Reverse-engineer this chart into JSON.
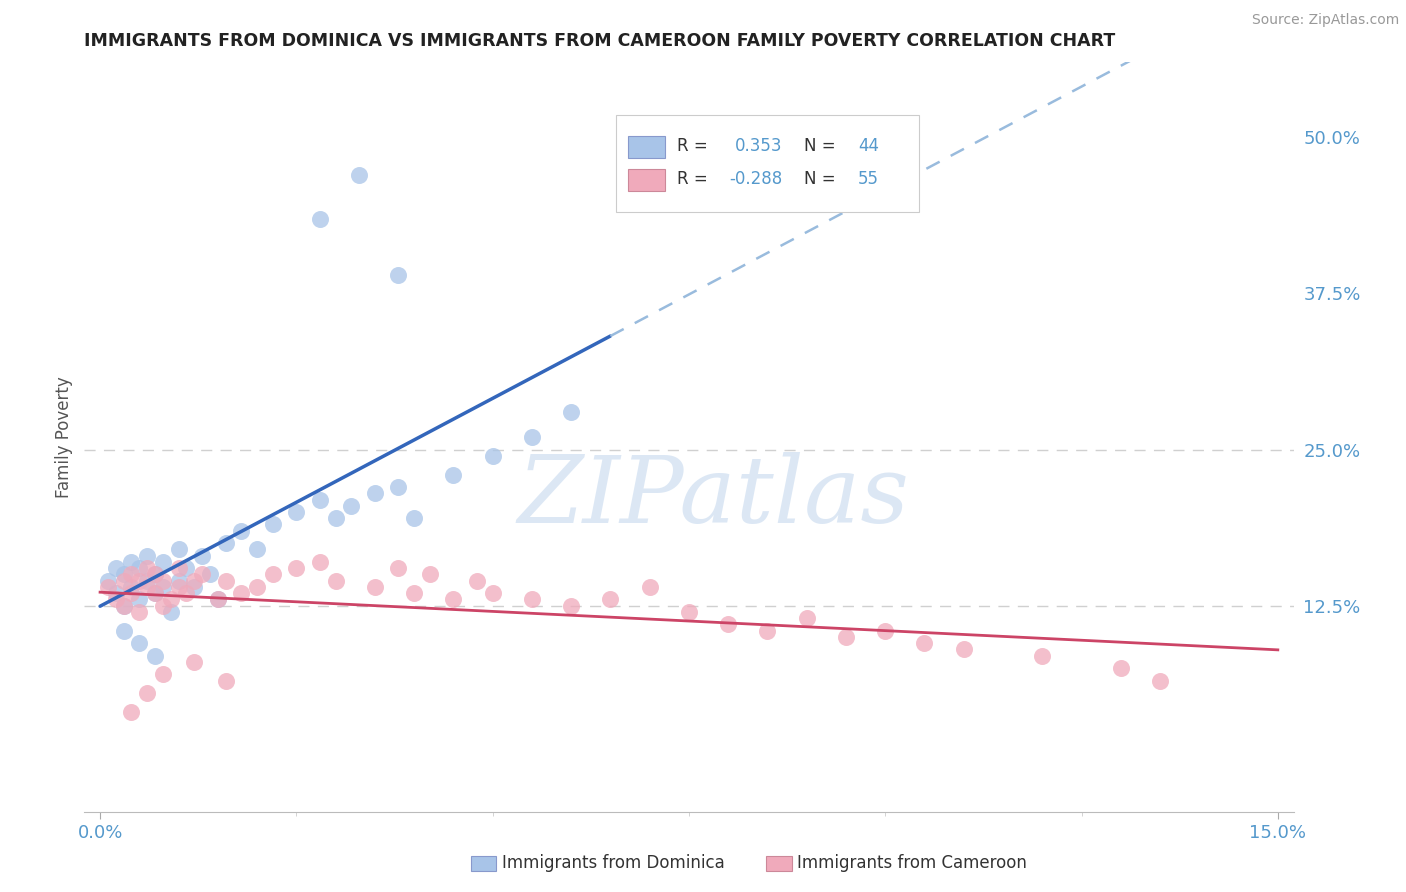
{
  "title": "IMMIGRANTS FROM DOMINICA VS IMMIGRANTS FROM CAMEROON FAMILY POVERTY CORRELATION CHART",
  "source": "Source: ZipAtlas.com",
  "xlabel_dominica": "Immigrants from Dominica",
  "xlabel_cameroon": "Immigrants from Cameroon",
  "ylabel": "Family Poverty",
  "xlim": [
    0.0,
    0.15
  ],
  "ylim": [
    0.0,
    0.55
  ],
  "ytick_right_vals": [
    0.125,
    0.25,
    0.375,
    0.5
  ],
  "ytick_right_labels": [
    "12.5%",
    "25.0%",
    "37.5%",
    "50.0%"
  ],
  "dominica_R": 0.353,
  "dominica_N": 44,
  "cameroon_R": -0.288,
  "cameroon_N": 55,
  "dominica_color": "#a8c4e8",
  "dominica_edge_color": "#6699cc",
  "dominica_line_color": "#3366bb",
  "dominica_line_dashed_color": "#99bbdd",
  "cameroon_color": "#f0aabb",
  "cameroon_edge_color": "#cc6688",
  "cameroon_line_color": "#cc4466",
  "watermark_color": "#c5d8ee",
  "watermark_text": "ZIPatlas",
  "background_color": "#ffffff",
  "dashed_line_color": "#d0d0d0",
  "title_color": "#222222",
  "title_fontsize": 12.5,
  "axis_label_color": "#5599cc",
  "ylabel_color": "#555555",
  "legend_text_color": "#333333",
  "legend_val_color": "#5599cc",
  "source_color": "#999999"
}
